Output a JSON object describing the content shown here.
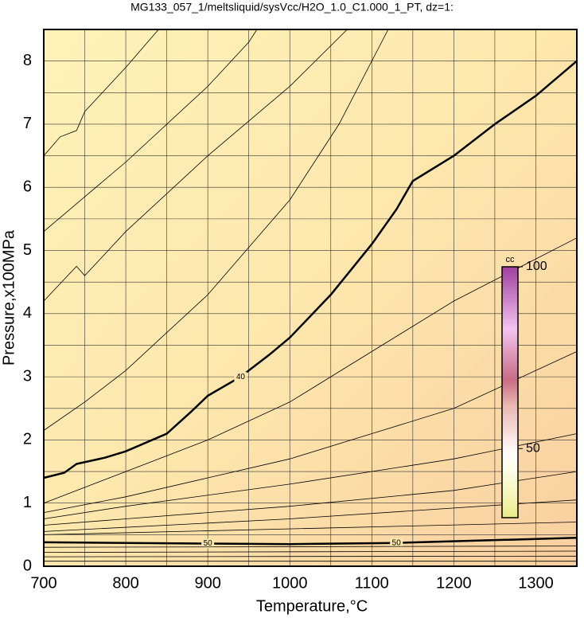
{
  "chart_data": {
    "type": "contour",
    "title": "MG133_057_1/meltsliquid/sysVcc/H2O_1.0_C1.000_1_PT, dz=1:",
    "x_label": "Temperature,°C",
    "y_label": "Pressure,x100MPa",
    "xlim": [
      700,
      1350
    ],
    "ylim": [
      0,
      8.5
    ],
    "xticks": [
      700,
      800,
      900,
      1000,
      1100,
      1200,
      1300
    ],
    "yticks": [
      0,
      1,
      2,
      3,
      4,
      5,
      6,
      7,
      8
    ],
    "xgrid": [
      750,
      850,
      950,
      1050,
      1150,
      1250
    ],
    "ygrid": [
      0.5,
      1.5,
      2.5,
      3.5,
      4.5,
      5.5,
      6.5,
      7.5
    ],
    "series": [
      {
        "label": "40",
        "bold": true,
        "label_at": [
          8
        ],
        "x": [
          700,
          725,
          740,
          775,
          800,
          850,
          880,
          900,
          940,
          975,
          1000,
          1050,
          1100,
          1130,
          1150,
          1200,
          1250,
          1300,
          1350
        ],
        "values": [
          1.4,
          1.48,
          1.62,
          1.72,
          1.82,
          2.1,
          2.45,
          2.7,
          3.0,
          3.35,
          3.62,
          4.3,
          5.1,
          5.65,
          6.1,
          6.5,
          7.0,
          7.45,
          8.0
        ]
      },
      {
        "x": [
          700,
          720,
          740,
          750,
          800,
          840
        ],
        "values": [
          6.5,
          6.8,
          6.9,
          7.2,
          7.9,
          8.5
        ]
      },
      {
        "x": [
          700,
          750,
          800,
          900,
          950,
          960
        ],
        "values": [
          5.3,
          5.85,
          6.4,
          7.6,
          8.3,
          8.5
        ]
      },
      {
        "x": [
          700,
          740,
          750,
          800,
          900,
          1000,
          1070
        ],
        "values": [
          4.2,
          4.75,
          4.6,
          5.3,
          6.5,
          7.6,
          8.5
        ]
      },
      {
        "x": [
          700,
          750,
          800,
          900,
          1000,
          1060,
          1120
        ],
        "values": [
          2.15,
          2.6,
          3.1,
          4.3,
          5.8,
          7.0,
          8.5
        ]
      },
      {
        "x": [
          700,
          800,
          900,
          1000,
          1100,
          1200,
          1350
        ],
        "values": [
          1.0,
          1.5,
          2.0,
          2.6,
          3.4,
          4.2,
          5.2
        ]
      },
      {
        "x": [
          700,
          800,
          900,
          1000,
          1100,
          1200,
          1350
        ],
        "values": [
          0.85,
          1.1,
          1.4,
          1.7,
          2.1,
          2.5,
          3.4
        ]
      },
      {
        "x": [
          700,
          800,
          1000,
          1200,
          1350
        ],
        "values": [
          0.75,
          0.95,
          1.3,
          1.7,
          2.1
        ]
      },
      {
        "x": [
          700,
          800,
          1000,
          1200,
          1350
        ],
        "values": [
          0.65,
          0.75,
          0.95,
          1.2,
          1.5
        ]
      },
      {
        "x": [
          700,
          1000,
          1350
        ],
        "values": [
          0.55,
          0.75,
          1.05
        ]
      },
      {
        "x": [
          700,
          1350
        ],
        "values": [
          0.5,
          0.7
        ]
      },
      {
        "label": "50",
        "bold": true,
        "label_at": [
          1,
          3
        ],
        "x": [
          700,
          900,
          1000,
          1130,
          1350
        ],
        "values": [
          0.38,
          0.36,
          0.35,
          0.37,
          0.45
        ]
      },
      {
        "x": [
          700,
          1350
        ],
        "values": [
          0.3,
          0.32
        ]
      },
      {
        "x": [
          700,
          1350
        ],
        "values": [
          0.22,
          0.24
        ]
      },
      {
        "x": [
          700,
          1350
        ],
        "values": [
          0.15,
          0.16
        ]
      },
      {
        "x": [
          700,
          1350
        ],
        "values": [
          0.08,
          0.08
        ]
      }
    ],
    "colorbar": {
      "label": "cc",
      "clim": [
        31,
        100
      ],
      "ticks": [
        50,
        100
      ]
    }
  }
}
